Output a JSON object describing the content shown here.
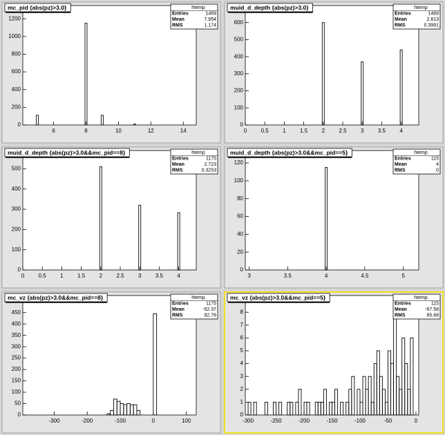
{
  "chart_data": [
    {
      "type": "bar",
      "title": "mc_pid {abs(pz)>3.0}",
      "stats": {
        "name": "htemp",
        "rows": [
          {
            "label": "Entries",
            "value": 1469
          },
          {
            "label": "Mean",
            "value": 7.954
          },
          {
            "label": "RMS",
            "value": 1.174
          }
        ]
      },
      "x": [
        5,
        8,
        9,
        11
      ],
      "values": [
        110,
        1150,
        110,
        10
      ],
      "color": "#000000",
      "xlim": [
        4.1,
        14.8
      ],
      "xticks": [
        6,
        8,
        10,
        12,
        14
      ],
      "ylim": [
        0,
        1350
      ],
      "yticks": [
        0,
        200,
        400,
        600,
        800,
        1000,
        1200
      ]
    },
    {
      "type": "bar",
      "title": "muid_d_depth {abs(pz)>3.0}",
      "stats": {
        "name": "htemp",
        "rows": [
          {
            "label": "Entries",
            "value": 1469
          },
          {
            "label": "Mean",
            "value": 2.813
          },
          {
            "label": "RMS",
            "value": 0.3991
          }
        ]
      },
      "x": [
        2,
        3,
        4
      ],
      "values": [
        600,
        370,
        440
      ],
      "color": "#000000",
      "xlim": [
        0,
        4.45
      ],
      "xticks": [
        0,
        0.5,
        1,
        1.5,
        2,
        2.5,
        3,
        3.5,
        4
      ],
      "ylim": [
        0,
        700
      ],
      "yticks": [
        0,
        100,
        200,
        300,
        400,
        500,
        600
      ]
    },
    {
      "type": "bar",
      "title": "muid_d_depth {abs(pz)>3.0&&mc_pid==8}",
      "stats": {
        "name": "htemp",
        "rows": [
          {
            "label": "Entries",
            "value": 1175
          },
          {
            "label": "Mean",
            "value": 2.723
          },
          {
            "label": "RMS",
            "value": 0.3253
          }
        ]
      },
      "x": [
        2,
        3,
        4
      ],
      "values": [
        510,
        320,
        283
      ],
      "color": "#000000",
      "xlim": [
        0,
        4.45
      ],
      "xticks": [
        0,
        0.5,
        1,
        1.5,
        2,
        2.5,
        3,
        3.5,
        4
      ],
      "ylim": [
        0,
        590
      ],
      "yticks": [
        0,
        100,
        200,
        300,
        400,
        500
      ]
    },
    {
      "type": "bar",
      "title": "muid_d_depth {abs(pz)>3.0&&mc_pid==5}",
      "stats": {
        "name": "htemp",
        "rows": [
          {
            "label": "Entries",
            "value": 115
          },
          {
            "label": "Mean",
            "value": 4
          },
          {
            "label": "RMS",
            "value": 0
          }
        ]
      },
      "x": [
        4
      ],
      "values": [
        115
      ],
      "color": "#000000",
      "xlim": [
        2.95,
        5.2
      ],
      "xticks": [
        3,
        3.5,
        4,
        4.5,
        5
      ],
      "ylim": [
        0,
        134
      ],
      "yticks": [
        0,
        20,
        40,
        60,
        80,
        100,
        120
      ]
    },
    {
      "type": "histogram",
      "title": "mc_vz {abs(pz)>3.0&&mc_pid==8}",
      "stats": {
        "name": "htemp",
        "rows": [
          {
            "label": "Entries",
            "value": 1175
          },
          {
            "label": "Mean",
            "value": -52.37
          },
          {
            "label": "RMS",
            "value": 92.76
          }
        ]
      },
      "bins": [
        -140,
        -130,
        -120,
        -110,
        -100,
        -90,
        -80,
        -70,
        -60,
        -50,
        -40,
        -30,
        -20,
        -10,
        0,
        10
      ],
      "values": [
        5,
        20,
        70,
        60,
        50,
        45,
        50,
        45,
        45,
        20,
        0,
        0,
        0,
        0,
        445
      ],
      "color": "#000000",
      "xlim": [
        -395,
        130
      ],
      "xticks": [
        -300,
        -200,
        -100,
        0,
        100
      ],
      "ylim": [
        0,
        525
      ],
      "yticks": [
        0,
        50,
        100,
        150,
        200,
        250,
        300,
        350,
        400,
        450
      ]
    },
    {
      "type": "histogram",
      "title": "mc_vz {abs(pz)>3.0&&mc_pid==5}",
      "stats": {
        "name": "htemp",
        "rows": [
          {
            "label": "Entries",
            "value": 115
          },
          {
            "label": "Mean",
            "value": -67.58
          },
          {
            "label": "RMS",
            "value": 85.68
          }
        ]
      },
      "bins": [
        -305,
        -300,
        -295,
        -290,
        -285,
        -280,
        -275,
        -270,
        -265,
        -260,
        -255,
        -250,
        -245,
        -240,
        -235,
        -230,
        -225,
        -220,
        -215,
        -210,
        -205,
        -200,
        -195,
        -190,
        -185,
        -180,
        -175,
        -170,
        -165,
        -160,
        -155,
        -150,
        -145,
        -140,
        -135,
        -130,
        -125,
        -120,
        -115,
        -110,
        -105,
        -100,
        -95,
        -90,
        -85,
        -80,
        -75,
        -70,
        -65,
        -60,
        -55,
        -50,
        -45,
        -40,
        -35,
        -30,
        -25,
        -20,
        -15,
        -10,
        -5,
        0,
        5
      ],
      "values": [
        0,
        1,
        0,
        1,
        0,
        0,
        0,
        1,
        0,
        0,
        1,
        0,
        1,
        0,
        0,
        1,
        1,
        0,
        1,
        2,
        0,
        1,
        1,
        0,
        0,
        1,
        1,
        1,
        2,
        0,
        1,
        1,
        2,
        0,
        1,
        0,
        1,
        2,
        3,
        0,
        2,
        1,
        3,
        2,
        3,
        1,
        4,
        5,
        3,
        2,
        1,
        5,
        4,
        8,
        3,
        2,
        6,
        4,
        2,
        6,
        0,
        0
      ],
      "color": "#000000",
      "xlim": [
        -305,
        5
      ],
      "xticks": [
        -300,
        -250,
        -200,
        -150,
        -100,
        -50,
        0
      ],
      "ylim": [
        0,
        9.3
      ],
      "yticks": [
        0,
        1,
        2,
        3,
        4,
        5,
        6,
        7,
        8
      ]
    }
  ]
}
